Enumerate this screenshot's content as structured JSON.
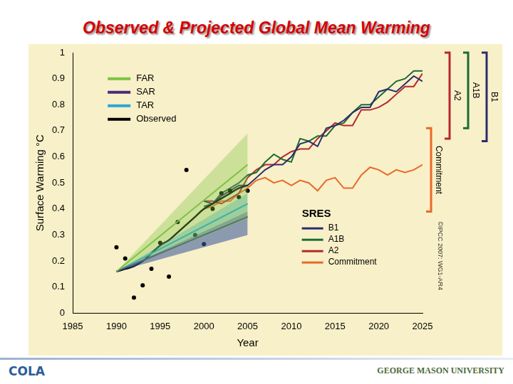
{
  "title": "Observed & Projected Global Mean Warming",
  "logos": [
    "COLA",
    "GEORGE MASON UNIVERSITY"
  ],
  "chart_data": {
    "type": "line",
    "xlabel": "Year",
    "ylabel": "Surface Warming °C",
    "xlim": [
      1985,
      2025
    ],
    "xticks": [
      1985,
      1990,
      1995,
      2000,
      2005,
      2010,
      2015,
      2020,
      2025
    ],
    "ylim": [
      0,
      1
    ],
    "yticks": [
      0,
      0.1,
      0.2,
      0.3,
      0.4,
      0.5,
      0.6,
      0.7,
      0.8,
      0.9,
      1
    ],
    "grid": false,
    "legend": "upper left",
    "series": [
      {
        "name": "FAR",
        "color": "#7cc242",
        "x": [
          1990,
          2005
        ],
        "values": [
          0.16,
          0.57
        ],
        "low": [
          0.16,
          0.36
        ],
        "high": [
          0.16,
          0.69
        ]
      },
      {
        "name": "SAR",
        "color": "#4b2a7b",
        "x": [
          1990,
          2005
        ],
        "values": [
          0.16,
          0.37
        ],
        "low": [
          0.16,
          0.3
        ],
        "high": [
          0.16,
          0.39
        ]
      },
      {
        "name": "TAR",
        "color": "#2aa7d8",
        "x": [
          1990,
          2005
        ],
        "values": [
          0.16,
          0.42
        ],
        "low": [
          0.16,
          0.3
        ],
        "high": [
          0.16,
          0.46
        ]
      },
      {
        "name": "Observed",
        "color": "#000000",
        "marker": "circle",
        "line_style": "none",
        "x": [
          1990,
          1991,
          1992,
          1993,
          1994,
          1995,
          1996,
          1997,
          1998,
          1999,
          2000,
          2001,
          2002,
          2003,
          2004,
          2005
        ],
        "values": [
          0.253,
          0.21,
          0.06,
          0.107,
          0.17,
          0.27,
          0.14,
          0.35,
          0.55,
          0.3,
          0.265,
          0.4,
          0.46,
          0.47,
          0.445,
          0.47
        ],
        "smoothed": [
          0.16,
          0.17,
          0.18,
          0.2,
          0.23,
          0.26,
          0.28,
          0.31,
          0.34,
          0.37,
          0.4,
          0.42,
          0.44,
          0.46,
          0.48,
          0.49
        ]
      },
      {
        "name": "B1",
        "group": "SRES",
        "color": "#2b2c6e",
        "x": [
          2000,
          2001,
          2002,
          2003,
          2004,
          2005,
          2006,
          2007,
          2008,
          2009,
          2010,
          2011,
          2012,
          2013,
          2014,
          2015,
          2016,
          2017,
          2018,
          2019,
          2020,
          2021,
          2022,
          2023,
          2024,
          2025
        ],
        "values": [
          0.43,
          0.42,
          0.45,
          0.47,
          0.49,
          0.49,
          0.52,
          0.55,
          0.57,
          0.57,
          0.6,
          0.65,
          0.66,
          0.64,
          0.71,
          0.72,
          0.74,
          0.77,
          0.79,
          0.79,
          0.85,
          0.86,
          0.85,
          0.88,
          0.91,
          0.89
        ]
      },
      {
        "name": "A1B",
        "group": "SRES",
        "color": "#1a6b34",
        "x": [
          2000,
          2001,
          2002,
          2003,
          2004,
          2005,
          2006,
          2007,
          2008,
          2009,
          2010,
          2011,
          2012,
          2013,
          2014,
          2015,
          2016,
          2017,
          2018,
          2019,
          2020,
          2021,
          2022,
          2023,
          2024,
          2025
        ],
        "values": [
          0.41,
          0.42,
          0.46,
          0.48,
          0.5,
          0.53,
          0.54,
          0.58,
          0.61,
          0.59,
          0.58,
          0.67,
          0.66,
          0.68,
          0.68,
          0.72,
          0.73,
          0.77,
          0.8,
          0.8,
          0.83,
          0.86,
          0.89,
          0.9,
          0.93,
          0.93
        ]
      },
      {
        "name": "A2",
        "group": "SRES",
        "color": "#b5282e",
        "x": [
          2000,
          2001,
          2002,
          2003,
          2004,
          2005,
          2006,
          2007,
          2008,
          2009,
          2010,
          2011,
          2012,
          2013,
          2014,
          2015,
          2016,
          2017,
          2018,
          2019,
          2020,
          2021,
          2022,
          2023,
          2024,
          2025
        ],
        "values": [
          0.43,
          0.43,
          0.42,
          0.44,
          0.46,
          0.52,
          0.55,
          0.57,
          0.57,
          0.6,
          0.62,
          0.63,
          0.63,
          0.67,
          0.7,
          0.73,
          0.72,
          0.72,
          0.78,
          0.78,
          0.79,
          0.81,
          0.84,
          0.87,
          0.87,
          0.92
        ]
      },
      {
        "name": "Commitment",
        "group": "SRES",
        "color": "#e8692d",
        "x": [
          2000,
          2001,
          2002,
          2003,
          2004,
          2005,
          2006,
          2007,
          2008,
          2009,
          2010,
          2011,
          2012,
          2013,
          2014,
          2015,
          2016,
          2017,
          2018,
          2019,
          2020,
          2021,
          2022,
          2023,
          2024,
          2025
        ],
        "values": [
          0.4,
          0.41,
          0.43,
          0.43,
          0.46,
          0.48,
          0.51,
          0.52,
          0.5,
          0.51,
          0.49,
          0.51,
          0.5,
          0.47,
          0.51,
          0.52,
          0.48,
          0.48,
          0.53,
          0.56,
          0.55,
          0.53,
          0.55,
          0.54,
          0.55,
          0.57
        ]
      }
    ],
    "brackets": [
      {
        "name": "Commitment",
        "color": "#e8692d",
        "range": [
          0.39,
          0.71
        ]
      },
      {
        "name": "A2",
        "color": "#b5282e",
        "range": [
          0.67,
          1.0
        ]
      },
      {
        "name": "A1B",
        "color": "#1a6b34",
        "range": [
          0.71,
          1.0
        ]
      },
      {
        "name": "B1",
        "color": "#2b2c6e",
        "range": [
          0.66,
          1.0
        ]
      }
    ],
    "annotations": [
      "©IPCC 2007: WG1-AR4"
    ]
  }
}
